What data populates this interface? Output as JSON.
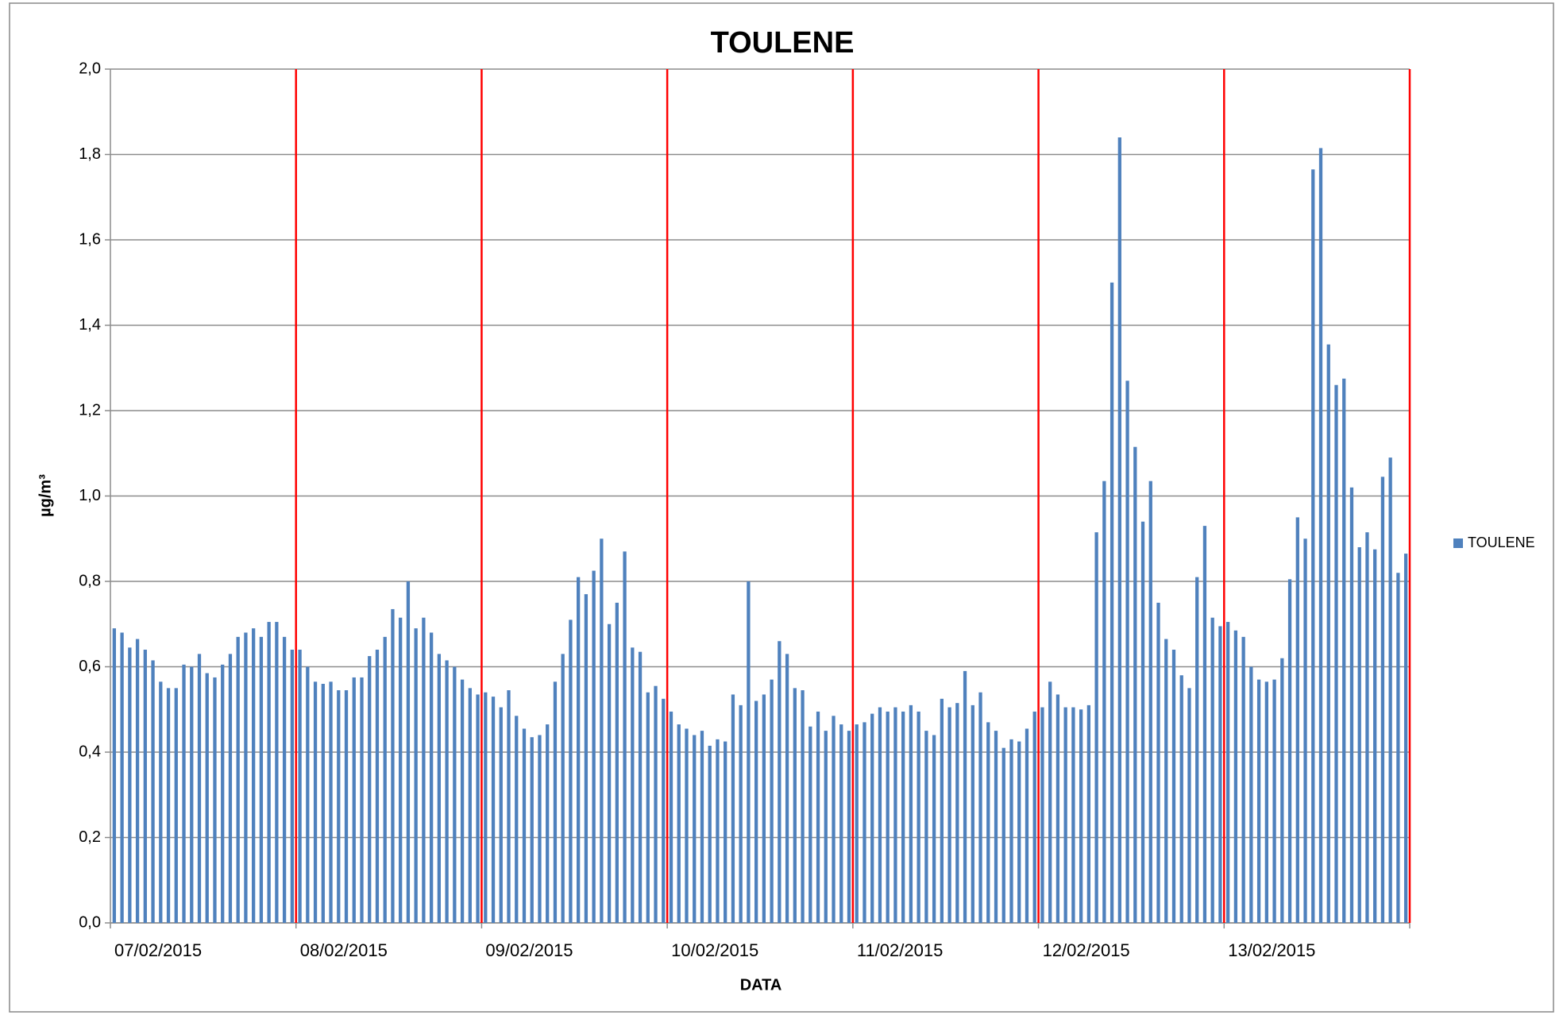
{
  "chart_data": {
    "type": "bar",
    "title": "TOULENE",
    "x_label": "DATA",
    "y_label": "µg/m³",
    "categories": [
      "07/02/2015",
      null,
      null,
      null,
      null,
      null,
      null,
      null,
      null,
      null,
      null,
      null,
      null,
      null,
      null,
      null,
      null,
      null,
      null,
      null,
      null,
      null,
      null,
      null,
      "08/02/2015",
      null,
      null,
      null,
      null,
      null,
      null,
      null,
      null,
      null,
      null,
      null,
      null,
      null,
      null,
      null,
      null,
      null,
      null,
      null,
      null,
      null,
      null,
      null,
      "09/02/2015",
      null,
      null,
      null,
      null,
      null,
      null,
      null,
      null,
      null,
      null,
      null,
      null,
      null,
      null,
      null,
      null,
      null,
      null,
      null,
      null,
      null,
      null,
      null,
      "10/02/2015",
      null,
      null,
      null,
      null,
      null,
      null,
      null,
      null,
      null,
      null,
      null,
      null,
      null,
      null,
      null,
      null,
      null,
      null,
      null,
      null,
      null,
      null,
      null,
      "11/02/2015",
      null,
      null,
      null,
      null,
      null,
      null,
      null,
      null,
      null,
      null,
      null,
      null,
      null,
      null,
      null,
      null,
      null,
      null,
      null,
      null,
      null,
      null,
      null,
      "12/02/2015",
      null,
      null,
      null,
      null,
      null,
      null,
      null,
      null,
      null,
      null,
      null,
      null,
      null,
      null,
      null,
      null,
      null,
      null,
      null,
      null,
      null,
      null,
      null,
      "13/02/2015",
      null,
      null,
      null,
      null,
      null,
      null,
      null,
      null,
      null,
      null,
      null,
      null,
      null,
      null,
      null,
      null,
      null,
      null,
      null,
      null,
      null,
      null,
      null
    ],
    "series": [
      {
        "name": "TOULENE",
        "color": "#4f81bd",
        "values": [
          0.69,
          0.68,
          0.645,
          0.665,
          0.64,
          0.615,
          0.565,
          0.55,
          0.55,
          0.605,
          0.6,
          0.63,
          0.585,
          0.575,
          0.605,
          0.63,
          0.67,
          0.68,
          0.69,
          0.67,
          0.705,
          0.705,
          0.67,
          0.64,
          0.64,
          0.6,
          0.565,
          0.56,
          0.565,
          0.545,
          0.545,
          0.575,
          0.575,
          0.625,
          0.64,
          0.67,
          0.735,
          0.715,
          0.8,
          0.69,
          0.715,
          0.68,
          0.63,
          0.615,
          0.6,
          0.57,
          0.55,
          0.535,
          0.54,
          0.53,
          0.505,
          0.545,
          0.485,
          0.455,
          0.435,
          0.44,
          0.465,
          0.565,
          0.63,
          0.71,
          0.81,
          0.77,
          0.825,
          0.9,
          0.7,
          0.75,
          0.87,
          0.645,
          0.635,
          0.54,
          0.555,
          0.525,
          0.495,
          0.465,
          0.455,
          0.44,
          0.45,
          0.415,
          0.43,
          0.425,
          0.535,
          0.51,
          0.8,
          0.52,
          0.535,
          0.57,
          0.66,
          0.63,
          0.55,
          0.545,
          0.46,
          0.495,
          0.45,
          0.485,
          0.465,
          0.45,
          0.465,
          0.47,
          0.49,
          0.505,
          0.495,
          0.505,
          0.495,
          0.51,
          0.495,
          0.45,
          0.44,
          0.525,
          0.505,
          0.515,
          0.59,
          0.51,
          0.54,
          0.47,
          0.45,
          0.41,
          0.43,
          0.425,
          0.455,
          0.495,
          0.505,
          0.565,
          0.535,
          0.505,
          0.505,
          0.5,
          0.51,
          0.915,
          1.035,
          1.5,
          1.84,
          1.27,
          1.115,
          0.94,
          1.035,
          0.75,
          0.665,
          0.64,
          0.58,
          0.55,
          0.81,
          0.93,
          0.715,
          0.695,
          0.705,
          0.685,
          0.67,
          0.6,
          0.57,
          0.565,
          0.57,
          0.62,
          0.805,
          0.95,
          0.9,
          1.765,
          1.815,
          1.355,
          1.26,
          1.275,
          1.02,
          0.88,
          0.915,
          0.875,
          1.045,
          1.09,
          0.82,
          0.865
        ]
      }
    ],
    "ylim": [
      0,
      2
    ],
    "yticks": [
      {
        "value": 0,
        "label": "0,0"
      },
      {
        "value": 0.2,
        "label": "0,2"
      },
      {
        "value": 0.4,
        "label": "0,4"
      },
      {
        "value": 0.6,
        "label": "0,6"
      },
      {
        "value": 0.8,
        "label": "0,8"
      },
      {
        "value": 1,
        "label": "1,0"
      },
      {
        "value": 1.2,
        "label": "1,2"
      },
      {
        "value": 1.4,
        "label": "1,4"
      },
      {
        "value": 1.6,
        "label": "1,6"
      },
      {
        "value": 1.8,
        "label": "1,8"
      },
      {
        "value": 2,
        "label": "2,0"
      }
    ],
    "grid": true,
    "separator_color": "#ff0000",
    "legend": "right"
  }
}
